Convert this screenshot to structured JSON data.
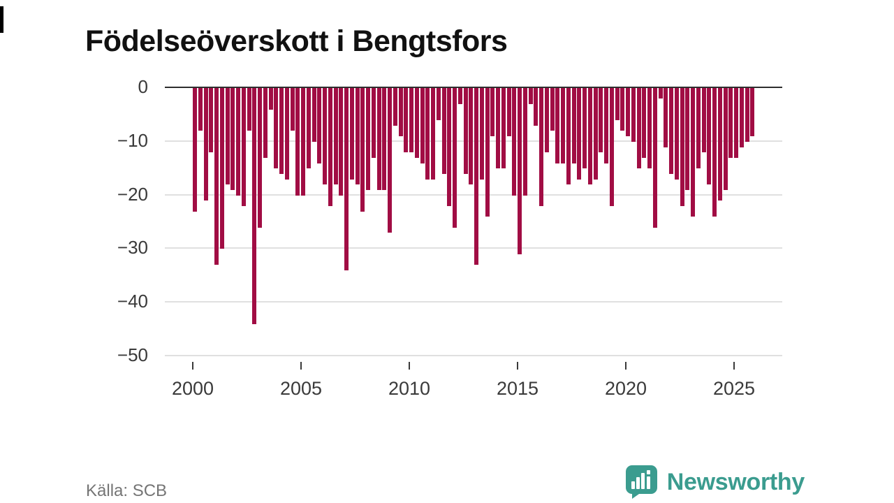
{
  "title": "Födelseöverskott i Bengtsfors",
  "source": "Källa: SCB",
  "brand": {
    "name": "Newsworthy",
    "color": "#3B9C8F"
  },
  "chart_data": {
    "type": "bar",
    "title": "Födelseöverskott i Bengtsfors",
    "description": "Quarterly birth surplus (births minus deaths) in Bengtsfors municipality, all values negative",
    "bar_color": "#A10D44",
    "grid_color": "#e0e0e0",
    "axis_color": "#2e2e2e",
    "ylim": [
      -50,
      0
    ],
    "grid": true,
    "legend": "none",
    "yticks": [
      {
        "v": 0,
        "label": "0"
      },
      {
        "v": -10,
        "label": "−10"
      },
      {
        "v": -20,
        "label": "−20"
      },
      {
        "v": -30,
        "label": "−30"
      },
      {
        "v": -40,
        "label": "−40"
      },
      {
        "v": -50,
        "label": "−50"
      }
    ],
    "xticks": [
      {
        "v": 2000,
        "label": "2000"
      },
      {
        "v": 2005,
        "label": "2005"
      },
      {
        "v": 2010,
        "label": "2010"
      },
      {
        "v": 2015,
        "label": "2015"
      },
      {
        "v": 2020,
        "label": "2020"
      },
      {
        "v": 2025,
        "label": "2025"
      }
    ],
    "periods_per_year": 4,
    "values_by_year": [
      {
        "year": 2000,
        "q": [
          -23,
          -8,
          -21,
          -12
        ]
      },
      {
        "year": 2001,
        "q": [
          -33,
          -30,
          -18,
          -19
        ]
      },
      {
        "year": 2002,
        "q": [
          -20,
          -22,
          -8,
          -44
        ]
      },
      {
        "year": 2003,
        "q": [
          -26,
          -13,
          -4,
          -15
        ]
      },
      {
        "year": 2004,
        "q": [
          -16,
          -17,
          -8,
          -20
        ]
      },
      {
        "year": 2005,
        "q": [
          -20,
          -15,
          -10,
          -14
        ]
      },
      {
        "year": 2006,
        "q": [
          -18,
          -22,
          -18,
          -20
        ]
      },
      {
        "year": 2007,
        "q": [
          -34,
          -17,
          -18,
          -23
        ]
      },
      {
        "year": 2008,
        "q": [
          -19,
          -13,
          -19,
          -19
        ]
      },
      {
        "year": 2009,
        "q": [
          -27,
          -7,
          -9,
          -12
        ]
      },
      {
        "year": 2010,
        "q": [
          -12,
          -13,
          -14,
          -17
        ]
      },
      {
        "year": 2011,
        "q": [
          -17,
          -6,
          -16,
          -22
        ]
      },
      {
        "year": 2012,
        "q": [
          -26,
          -3,
          -16,
          -18
        ]
      },
      {
        "year": 2013,
        "q": [
          -33,
          -17,
          -24,
          -9
        ]
      },
      {
        "year": 2014,
        "q": [
          -15,
          -15,
          -9,
          -20
        ]
      },
      {
        "year": 2015,
        "q": [
          -31,
          -20,
          -3,
          -7
        ]
      },
      {
        "year": 2016,
        "q": [
          -22,
          -12,
          -8,
          -14
        ]
      },
      {
        "year": 2017,
        "q": [
          -14,
          -18,
          -14,
          -17
        ]
      },
      {
        "year": 2018,
        "q": [
          -15,
          -18,
          -17,
          -12
        ]
      },
      {
        "year": 2019,
        "q": [
          -14,
          -22,
          -6,
          -8
        ]
      },
      {
        "year": 2020,
        "q": [
          -9,
          -10,
          -15,
          -13
        ]
      },
      {
        "year": 2021,
        "q": [
          -15,
          -26,
          -2,
          -11
        ]
      },
      {
        "year": 2022,
        "q": [
          -16,
          -17,
          -22,
          -19
        ]
      },
      {
        "year": 2023,
        "q": [
          -24,
          -15,
          -12,
          -18
        ]
      },
      {
        "year": 2024,
        "q": [
          -24,
          -21,
          -19,
          -13
        ]
      },
      {
        "year": 2025,
        "q": [
          -13,
          -11,
          -10,
          -9
        ]
      }
    ]
  }
}
